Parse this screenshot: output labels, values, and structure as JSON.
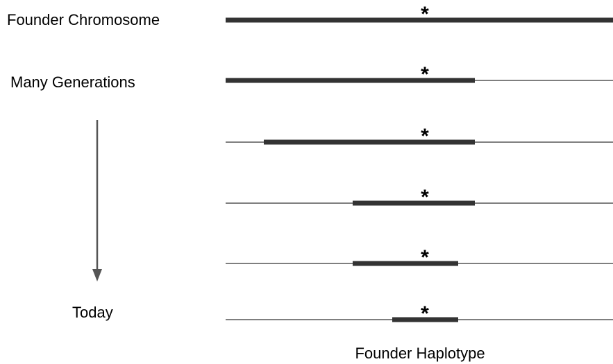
{
  "labels": {
    "founder_chromosome": "Founder Chromosome",
    "many_generations": "Many Generations",
    "today": "Today",
    "founder_haplotype": "Founder Haplotype"
  },
  "markers": [
    "*",
    "*",
    "*",
    "*",
    "*",
    "*"
  ]
}
